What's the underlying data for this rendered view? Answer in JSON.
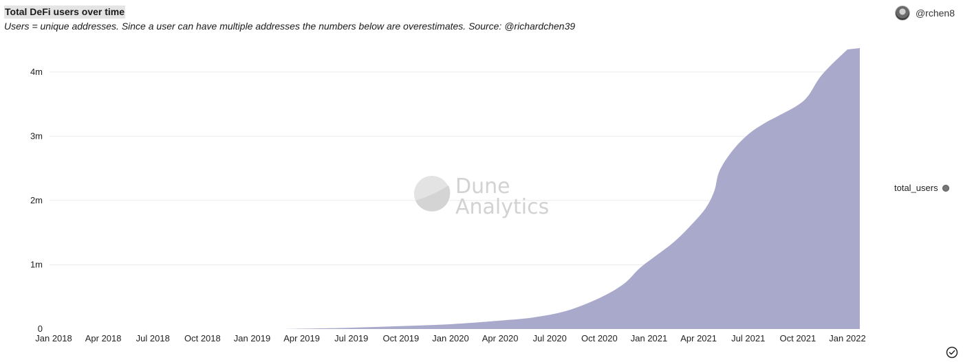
{
  "header": {
    "title": "Total DeFi users over time",
    "subtitle": "Users = unique addresses. Since a user can have multiple addresses the numbers below are overestimates. Source: @richardchen39",
    "author": "@rchen8"
  },
  "watermark": {
    "line1": "Dune",
    "line2": "Analytics"
  },
  "chart_data": {
    "type": "area",
    "title": "Total DeFi users over time",
    "xlabel": "",
    "ylabel": "",
    "x_ticks": [
      "Jan 2018",
      "Apr 2018",
      "Jul 2018",
      "Oct 2018",
      "Jan 2019",
      "Apr 2019",
      "Jul 2019",
      "Oct 2019",
      "Jan 2020",
      "Apr 2020",
      "Jul 2020",
      "Oct 2020",
      "Jan 2021",
      "Apr 2021",
      "Jul 2021",
      "Oct 2021",
      "Jan 2022"
    ],
    "y_ticks": [
      {
        "value": 0,
        "label": "0"
      },
      {
        "value": 1000000,
        "label": "1m"
      },
      {
        "value": 2000000,
        "label": "2m"
      },
      {
        "value": 3000000,
        "label": "3m"
      },
      {
        "value": 4000000,
        "label": "4m"
      }
    ],
    "xlim": [
      "2018-01-01",
      "2022-01-01"
    ],
    "ylim": [
      0,
      4500000
    ],
    "grid": true,
    "legend_position": "right",
    "color": "#a9a9cb",
    "series": [
      {
        "name": "total_users",
        "points": [
          [
            "2019-03-01",
            0
          ],
          [
            "2019-04-01",
            5000
          ],
          [
            "2019-07-01",
            20000
          ],
          [
            "2019-10-01",
            45000
          ],
          [
            "2020-01-01",
            75000
          ],
          [
            "2020-04-01",
            130000
          ],
          [
            "2020-06-01",
            180000
          ],
          [
            "2020-08-01",
            280000
          ],
          [
            "2020-10-01",
            480000
          ],
          [
            "2020-11-15",
            700000
          ],
          [
            "2020-12-15",
            950000
          ],
          [
            "2021-01-15",
            1150000
          ],
          [
            "2021-02-15",
            1350000
          ],
          [
            "2021-03-15",
            1580000
          ],
          [
            "2021-04-15",
            1880000
          ],
          [
            "2021-05-01",
            2150000
          ],
          [
            "2021-05-10",
            2450000
          ],
          [
            "2021-06-01",
            2750000
          ],
          [
            "2021-07-01",
            3020000
          ],
          [
            "2021-08-01",
            3200000
          ],
          [
            "2021-09-01",
            3340000
          ],
          [
            "2021-10-01",
            3480000
          ],
          [
            "2021-10-20",
            3620000
          ],
          [
            "2021-11-10",
            3900000
          ],
          [
            "2021-12-01",
            4100000
          ],
          [
            "2022-01-01",
            4350000
          ]
        ]
      }
    ]
  }
}
